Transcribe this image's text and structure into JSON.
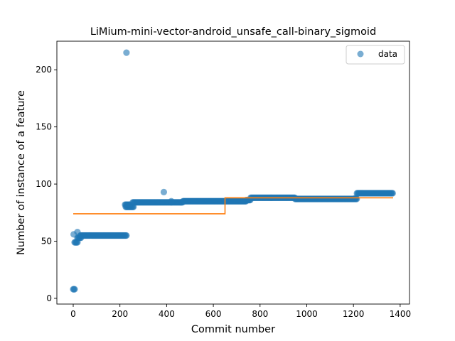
{
  "chart_data": {
    "type": "scatter",
    "title": "LiMium-mini-vector-android_unsafe_call-binary_sigmoid",
    "xlabel": "Commit number",
    "ylabel": "Number of instance of a feature",
    "xlim": [
      -70,
      1440
    ],
    "ylim": [
      -5,
      225
    ],
    "xticks": [
      0,
      200,
      400,
      600,
      800,
      1000,
      1200,
      1400
    ],
    "yticks": [
      0,
      50,
      100,
      150,
      200
    ],
    "grid": false,
    "legend": {
      "placement": "top-right",
      "entries": [
        "data"
      ]
    },
    "colors": {
      "data": "#1f77b4",
      "fit": "#ff7f0e"
    },
    "series": [
      {
        "name": "data",
        "kind": "scatter",
        "segments": [
          {
            "x_start": 0,
            "x_end": 6,
            "y": 8
          },
          {
            "x_start": 6,
            "x_end": 20,
            "y": 49
          },
          {
            "x_start": 18,
            "x_end": 35,
            "y": 53
          },
          {
            "x_start": 30,
            "x_end": 230,
            "y": 55
          },
          {
            "x_start": 225,
            "x_end": 260,
            "y": 80
          },
          {
            "x_start": 222,
            "x_end": 245,
            "y": 82
          },
          {
            "x_start": 255,
            "x_end": 420,
            "y": 84
          },
          {
            "x_start": 420,
            "x_end": 470,
            "y": 84
          },
          {
            "x_start": 470,
            "x_end": 740,
            "y": 85
          },
          {
            "x_start": 740,
            "x_end": 760,
            "y": 86
          },
          {
            "x_start": 760,
            "x_end": 950,
            "y": 88
          },
          {
            "x_start": 950,
            "x_end": 1215,
            "y": 87
          },
          {
            "x_start": 1215,
            "x_end": 1370,
            "y": 92
          }
        ],
        "points": [
          {
            "x": 2,
            "y": 56
          },
          {
            "x": 18,
            "y": 58
          },
          {
            "x": 228,
            "y": 215
          },
          {
            "x": 388,
            "y": 93
          },
          {
            "x": 420,
            "y": 85
          },
          {
            "x": 1210,
            "y": 88
          }
        ]
      },
      {
        "name": "",
        "kind": "step",
        "x": [
          0,
          650,
          650,
          1370
        ],
        "y": [
          74,
          74,
          88,
          88
        ]
      }
    ]
  }
}
